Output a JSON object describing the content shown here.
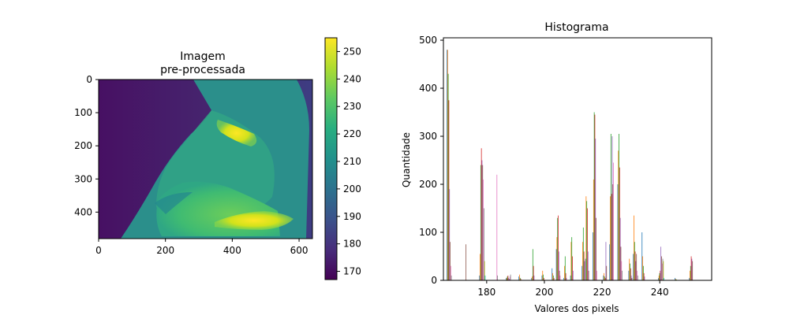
{
  "chart_data": [
    {
      "type": "heatmap",
      "title_lines": [
        "Imagem",
        "pre-processada"
      ],
      "colormap": "viridis",
      "xlim": [
        0,
        640
      ],
      "ylim": [
        480,
        0
      ],
      "x_ticks": [
        0,
        200,
        400,
        600
      ],
      "y_ticks": [
        0,
        100,
        200,
        300,
        400
      ],
      "colorbar": {
        "range": [
          167,
          255
        ],
        "ticks": [
          170,
          180,
          190,
          200,
          210,
          220,
          230,
          240,
          250
        ]
      },
      "colors": {
        "viridis": [
          "#440154",
          "#472d7b",
          "#3b528b",
          "#2c728e",
          "#21918c",
          "#28ae80",
          "#5ec962",
          "#addc30",
          "#fde725"
        ]
      }
    },
    {
      "type": "bar",
      "title": "Histograma",
      "xlabel": "Valores dos pixels",
      "ylabel": "Quantidade",
      "xlim": [
        165,
        258
      ],
      "ylim": [
        0,
        505
      ],
      "x_ticks": [
        180,
        200,
        220,
        240
      ],
      "y_ticks": [
        0,
        100,
        200,
        300,
        400,
        500
      ],
      "legend": "none",
      "grid": false,
      "series_colors": [
        "#1f77b4",
        "#ff7f0e",
        "#2ca02c",
        "#d62728",
        "#9467bd",
        "#8c564b",
        "#e377c2",
        "#7f7f7f",
        "#bcbd22",
        "#17becf"
      ],
      "bars": [
        {
          "x": 167.0,
          "values": [
            480,
            480,
            430,
            375,
            190,
            80,
            30,
            10
          ]
        },
        {
          "x": 172.5,
          "values": [
            0,
            0,
            0,
            0,
            0,
            75,
            0,
            0
          ]
        },
        {
          "x": 178.5,
          "values": [
            10,
            55,
            240,
            275,
            250,
            240,
            210,
            150,
            40,
            10
          ]
        },
        {
          "x": 183.0,
          "values": [
            0,
            0,
            0,
            0,
            0,
            0,
            220,
            10
          ]
        },
        {
          "x": 187.5,
          "values": [
            5,
            5,
            8,
            10,
            5,
            3,
            8,
            12
          ]
        },
        {
          "x": 191.5,
          "values": [
            8,
            12,
            5,
            3
          ]
        },
        {
          "x": 196.0,
          "values": [
            5,
            8,
            65,
            30,
            10
          ]
        },
        {
          "x": 199.5,
          "values": [
            10,
            20,
            12,
            5
          ]
        },
        {
          "x": 203.0,
          "values": [
            25,
            15,
            10,
            5
          ]
        },
        {
          "x": 204.8,
          "values": [
            65,
            90,
            130,
            135,
            60,
            20,
            10
          ]
        },
        {
          "x": 207.2,
          "values": [
            5,
            30,
            50,
            15,
            5
          ]
        },
        {
          "x": 209.5,
          "values": [
            10,
            80,
            90,
            50,
            20
          ]
        },
        {
          "x": 213.5,
          "values": [
            30,
            80,
            110,
            60,
            40
          ]
        },
        {
          "x": 214.8,
          "values": [
            45,
            175,
            165,
            150,
            60,
            20
          ]
        },
        {
          "x": 217.5,
          "values": [
            100,
            210,
            350,
            345,
            295,
            130,
            20
          ]
        },
        {
          "x": 221.0,
          "values": [
            10,
            15,
            8,
            5,
            80,
            30
          ]
        },
        {
          "x": 223.3,
          "values": [
            75,
            175,
            305,
            180,
            300,
            200,
            245
          ]
        },
        {
          "x": 226.2,
          "values": [
            200,
            270,
            305,
            235,
            130,
            70,
            40,
            20
          ]
        },
        {
          "x": 229.8,
          "values": [
            20,
            45,
            35,
            25,
            10,
            5
          ]
        },
        {
          "x": 231.6,
          "values": [
            55,
            135,
            80,
            60,
            40,
            55,
            20,
            10
          ]
        },
        {
          "x": 234.3,
          "values": [
            100,
            50,
            30,
            15,
            8
          ]
        },
        {
          "x": 240.5,
          "values": [
            5,
            10,
            15,
            20,
            70,
            50,
            35,
            45,
            40,
            5
          ]
        },
        {
          "x": 245.5,
          "values": [
            5,
            3,
            2
          ]
        },
        {
          "x": 250.8,
          "values": [
            5,
            20,
            30,
            50,
            45,
            40
          ]
        }
      ]
    }
  ]
}
